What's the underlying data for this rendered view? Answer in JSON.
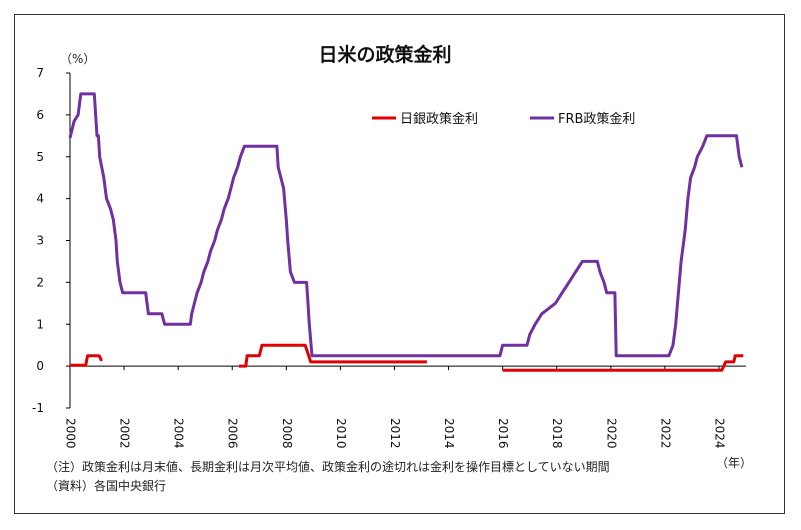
{
  "chart_data": {
    "type": "line",
    "title": "日米の政策金利",
    "ylabel": "（%）",
    "xlabel": "（年）",
    "xlim": [
      2000,
      2025
    ],
    "ylim": [
      -1,
      7
    ],
    "yticks": [
      -1,
      0,
      1,
      2,
      3,
      4,
      5,
      6,
      7
    ],
    "xticks": [
      2000,
      2002,
      2004,
      2006,
      2008,
      2010,
      2012,
      2014,
      2016,
      2018,
      2020,
      2022,
      2024
    ],
    "grid": false,
    "legend": "top-right",
    "series": [
      {
        "name": "日銀政策金利",
        "color": "#e00000",
        "segments": [
          [
            [
              2000.0,
              0.02
            ],
            [
              2000.58,
              0.02
            ],
            [
              2000.65,
              0.25
            ],
            [
              2001.08,
              0.25
            ],
            [
              2001.15,
              0.15
            ],
            [
              2001.2,
              0.15
            ]
          ],
          [
            [
              2006.25,
              0.0
            ],
            [
              2006.5,
              0.0
            ],
            [
              2006.55,
              0.25
            ],
            [
              2007.0,
              0.25
            ],
            [
              2007.1,
              0.5
            ],
            [
              2008.7,
              0.5
            ],
            [
              2008.8,
              0.3
            ],
            [
              2008.9,
              0.1
            ],
            [
              2013.2,
              0.1
            ]
          ],
          [
            [
              2016.0,
              -0.1
            ],
            [
              2024.1,
              -0.1
            ],
            [
              2024.25,
              0.1
            ],
            [
              2024.55,
              0.1
            ],
            [
              2024.6,
              0.25
            ],
            [
              2024.9,
              0.25
            ]
          ]
        ]
      },
      {
        "name": "FRB政策金利",
        "color": "#7030a0",
        "segments": [
          [
            [
              2000.0,
              5.45
            ],
            [
              2000.15,
              5.85
            ],
            [
              2000.3,
              6.0
            ],
            [
              2000.4,
              6.5
            ],
            [
              2000.9,
              6.5
            ],
            [
              2001.0,
              5.5
            ],
            [
              2001.05,
              5.5
            ],
            [
              2001.1,
              5.0
            ],
            [
              2001.25,
              4.5
            ],
            [
              2001.35,
              4.0
            ],
            [
              2001.5,
              3.75
            ],
            [
              2001.6,
              3.5
            ],
            [
              2001.7,
              3.0
            ],
            [
              2001.75,
              2.5
            ],
            [
              2001.85,
              2.0
            ],
            [
              2001.95,
              1.75
            ],
            [
              2002.8,
              1.75
            ],
            [
              2002.9,
              1.25
            ],
            [
              2003.4,
              1.25
            ],
            [
              2003.5,
              1.0
            ],
            [
              2004.45,
              1.0
            ],
            [
              2004.5,
              1.25
            ],
            [
              2004.6,
              1.5
            ],
            [
              2004.7,
              1.75
            ],
            [
              2004.85,
              2.0
            ],
            [
              2004.95,
              2.25
            ],
            [
              2005.1,
              2.5
            ],
            [
              2005.2,
              2.75
            ],
            [
              2005.35,
              3.0
            ],
            [
              2005.45,
              3.25
            ],
            [
              2005.6,
              3.5
            ],
            [
              2005.7,
              3.75
            ],
            [
              2005.85,
              4.0
            ],
            [
              2005.95,
              4.25
            ],
            [
              2006.05,
              4.5
            ],
            [
              2006.2,
              4.75
            ],
            [
              2006.3,
              5.0
            ],
            [
              2006.45,
              5.25
            ],
            [
              2007.65,
              5.25
            ],
            [
              2007.7,
              4.75
            ],
            [
              2007.8,
              4.5
            ],
            [
              2007.9,
              4.25
            ],
            [
              2008.0,
              3.5
            ],
            [
              2008.05,
              3.0
            ],
            [
              2008.15,
              2.25
            ],
            [
              2008.3,
              2.0
            ],
            [
              2008.75,
              2.0
            ],
            [
              2008.8,
              1.5
            ],
            [
              2008.85,
              1.0
            ],
            [
              2008.95,
              0.25
            ],
            [
              2015.9,
              0.25
            ],
            [
              2016.0,
              0.5
            ],
            [
              2016.9,
              0.5
            ],
            [
              2017.0,
              0.75
            ],
            [
              2017.2,
              1.0
            ],
            [
              2017.45,
              1.25
            ],
            [
              2017.95,
              1.5
            ],
            [
              2018.2,
              1.75
            ],
            [
              2018.45,
              2.0
            ],
            [
              2018.7,
              2.25
            ],
            [
              2018.95,
              2.5
            ],
            [
              2019.5,
              2.5
            ],
            [
              2019.6,
              2.25
            ],
            [
              2019.75,
              2.0
            ],
            [
              2019.85,
              1.75
            ],
            [
              2020.15,
              1.75
            ],
            [
              2020.2,
              0.25
            ],
            [
              2022.15,
              0.25
            ],
            [
              2022.3,
              0.5
            ],
            [
              2022.4,
              1.0
            ],
            [
              2022.5,
              1.75
            ],
            [
              2022.6,
              2.5
            ],
            [
              2022.75,
              3.25
            ],
            [
              2022.85,
              4.0
            ],
            [
              2022.95,
              4.5
            ],
            [
              2023.1,
              4.75
            ],
            [
              2023.2,
              5.0
            ],
            [
              2023.4,
              5.25
            ],
            [
              2023.55,
              5.5
            ],
            [
              2024.65,
              5.5
            ],
            [
              2024.75,
              5.0
            ],
            [
              2024.85,
              4.75
            ]
          ]
        ]
      }
    ]
  },
  "notes": {
    "line1": "（注）政策金利は月末値、長期金利は月次平均値、政策金利の途切れは金利を操作目標としていない期間",
    "line2": "（資料）各国中央銀行"
  }
}
